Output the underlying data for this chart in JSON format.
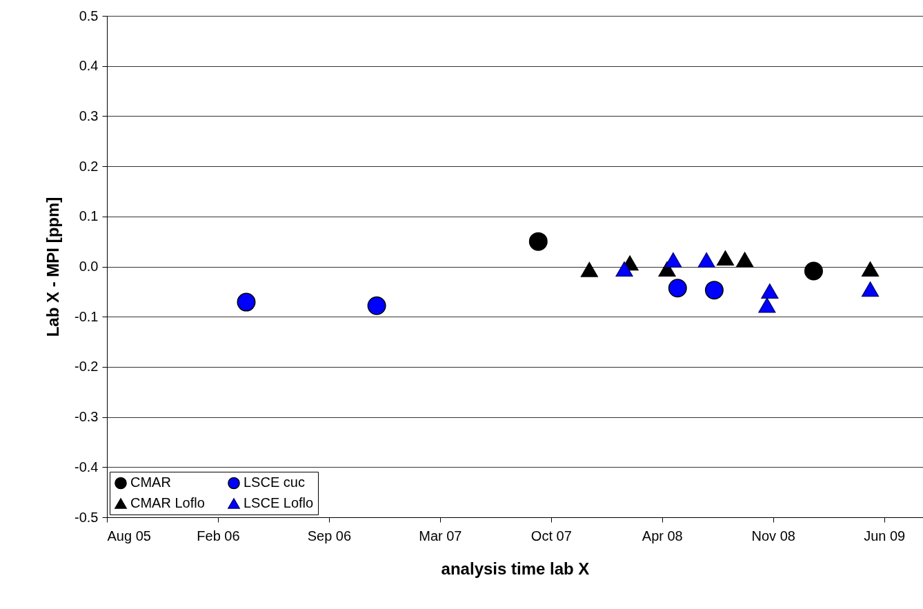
{
  "chart_data": {
    "type": "scatter",
    "xlabel": "analysis time lab X",
    "ylabel": "Lab X - MPI [ppm]",
    "xlim": [
      "2005-08-01",
      "2009-08-10"
    ],
    "xticks": [
      {
        "value": "2005-08-01",
        "label": "Aug 05"
      },
      {
        "value": "2006-02-17",
        "label": "Feb 06"
      },
      {
        "value": "2006-09-05",
        "label": "Sep 06"
      },
      {
        "value": "2007-03-24",
        "label": "Mar 07"
      },
      {
        "value": "2007-10-10",
        "label": "Oct 07"
      },
      {
        "value": "2008-04-27",
        "label": "Apr 08"
      },
      {
        "value": "2008-11-13",
        "label": "Nov 08"
      },
      {
        "value": "2009-06-01",
        "label": "Jun 09"
      }
    ],
    "ylim": [
      -0.5,
      0.5
    ],
    "yticks": [
      {
        "value": -0.5,
        "label": "-0.5"
      },
      {
        "value": -0.4,
        "label": "-0.4"
      },
      {
        "value": -0.3,
        "label": "-0.3"
      },
      {
        "value": -0.2,
        "label": "-0.2"
      },
      {
        "value": -0.1,
        "label": "-0.1"
      },
      {
        "value": 0,
        "label": "0.0"
      },
      {
        "value": 0.1,
        "label": "0.1"
      },
      {
        "value": 0.2,
        "label": "0.2"
      },
      {
        "value": 0.3,
        "label": "0.3"
      },
      {
        "value": 0.4,
        "label": "0.4"
      },
      {
        "value": 0.5,
        "label": "0.5"
      }
    ],
    "grid": "y",
    "legend": "bottom left",
    "series": [
      {
        "name": "CMAR",
        "color": "#000000",
        "marker": "circle",
        "x": [
          "2007-09-17",
          "2009-01-25"
        ],
        "values": [
          0.05,
          -0.009
        ]
      },
      {
        "name": "LSCE cuc",
        "color": "#0000ff",
        "marker": "circle",
        "x": [
          "2006-04-09",
          "2006-11-30",
          "2008-05-25",
          "2008-07-30"
        ],
        "values": [
          -0.071,
          -0.078,
          -0.043,
          -0.047
        ]
      },
      {
        "name": "CMAR Loflo",
        "color": "#000000",
        "marker": "triangle",
        "x": [
          "2007-12-18",
          "2008-02-29",
          "2008-05-06",
          "2008-08-19",
          "2008-09-23",
          "2009-05-07"
        ],
        "values": [
          -0.006,
          0.007,
          -0.005,
          0.017,
          0.014,
          -0.005
        ]
      },
      {
        "name": "LSCE Loflo",
        "color": "#0000ff",
        "marker": "triangle",
        "x": [
          "2008-02-19",
          "2008-05-17",
          "2008-07-16",
          "2008-11-07",
          "2008-11-02",
          "2009-05-07"
        ],
        "values": [
          -0.005,
          0.013,
          0.013,
          -0.049,
          -0.077,
          -0.045
        ]
      }
    ]
  }
}
